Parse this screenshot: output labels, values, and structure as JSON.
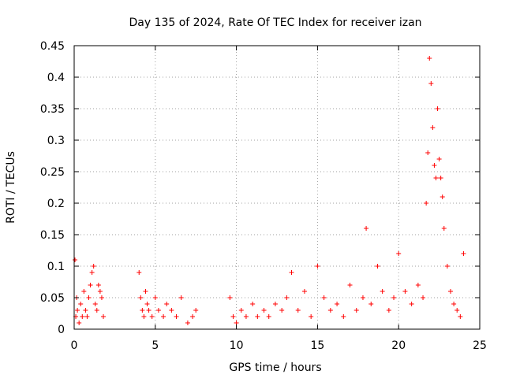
{
  "chart_data": {
    "type": "scatter",
    "title": "Day 135 of 2024, Rate Of TEC Index for receiver izan",
    "xlabel": "GPS time / hours",
    "ylabel": "ROTI / TECUs",
    "xlim": [
      0,
      25
    ],
    "ylim": [
      0,
      0.45
    ],
    "x_ticks": [
      0,
      5,
      10,
      15,
      20,
      25
    ],
    "x_tick_labels": [
      "0",
      "5",
      "10",
      "15",
      "20",
      "25"
    ],
    "y_ticks": [
      0,
      0.05,
      0.1,
      0.15,
      0.2,
      0.25,
      0.3,
      0.35,
      0.4,
      0.45
    ],
    "y_tick_labels": [
      "0",
      "0.05",
      "0.1",
      "0.15",
      "0.2",
      "0.25",
      "0.3",
      "0.35",
      "0.4",
      "0.45"
    ],
    "grid": true,
    "marker": "+",
    "series_color": "#ff0000",
    "series": [
      {
        "name": "ROTI",
        "x": [
          0.05,
          0.1,
          0.15,
          0.2,
          0.3,
          0.4,
          0.5,
          0.6,
          0.7,
          0.8,
          0.9,
          1.0,
          1.1,
          1.2,
          1.3,
          1.4,
          1.5,
          1.6,
          1.7,
          1.8,
          4.0,
          4.1,
          4.2,
          4.3,
          4.4,
          4.5,
          4.6,
          4.8,
          5.0,
          5.2,
          5.5,
          5.7,
          6.0,
          6.3,
          6.6,
          7.0,
          7.3,
          7.5,
          9.6,
          9.8,
          10.0,
          10.3,
          10.6,
          11.0,
          11.3,
          11.7,
          12.0,
          12.4,
          12.8,
          13.1,
          13.4,
          13.8,
          14.2,
          14.6,
          15.0,
          15.4,
          15.8,
          16.2,
          16.6,
          17.0,
          17.4,
          17.8,
          18.0,
          18.3,
          18.7,
          19.0,
          19.4,
          19.7,
          20.0,
          20.4,
          20.8,
          21.2,
          21.5,
          21.7,
          21.8,
          21.9,
          22.0,
          22.1,
          22.2,
          22.3,
          22.4,
          22.5,
          22.6,
          22.7,
          22.8,
          23.0,
          23.2,
          23.4,
          23.6,
          23.8,
          24.0
        ],
        "y": [
          0.11,
          0.02,
          0.05,
          0.03,
          0.01,
          0.04,
          0.02,
          0.06,
          0.03,
          0.02,
          0.05,
          0.07,
          0.09,
          0.1,
          0.04,
          0.03,
          0.07,
          0.06,
          0.05,
          0.02,
          0.09,
          0.05,
          0.03,
          0.02,
          0.06,
          0.04,
          0.03,
          0.02,
          0.05,
          0.03,
          0.02,
          0.04,
          0.03,
          0.02,
          0.05,
          0.01,
          0.02,
          0.03,
          0.05,
          0.02,
          0.01,
          0.03,
          0.02,
          0.04,
          0.02,
          0.03,
          0.02,
          0.04,
          0.03,
          0.05,
          0.09,
          0.03,
          0.06,
          0.02,
          0.1,
          0.05,
          0.03,
          0.04,
          0.02,
          0.07,
          0.03,
          0.05,
          0.16,
          0.04,
          0.1,
          0.06,
          0.03,
          0.05,
          0.12,
          0.06,
          0.04,
          0.07,
          0.05,
          0.2,
          0.28,
          0.43,
          0.39,
          0.32,
          0.26,
          0.24,
          0.35,
          0.27,
          0.24,
          0.21,
          0.16,
          0.1,
          0.06,
          0.04,
          0.03,
          0.02,
          0.12
        ]
      }
    ]
  }
}
